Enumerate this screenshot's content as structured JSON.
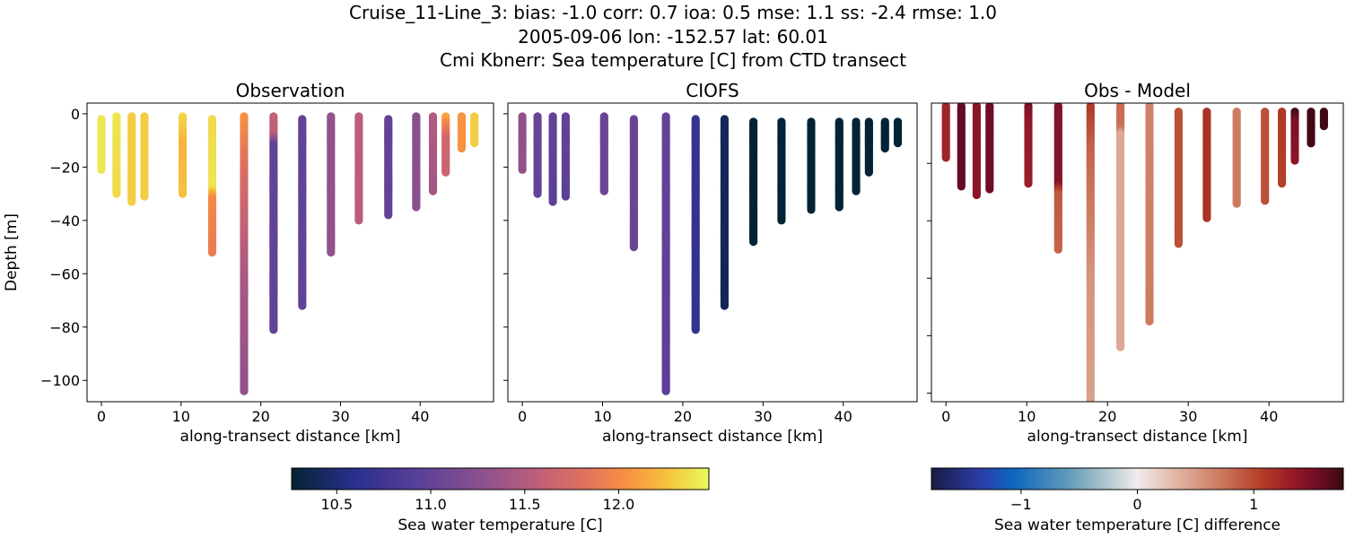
{
  "suptitle": {
    "line1": "Cruise_11-Line_3: bias: -1.0  corr: 0.7  ioa: 0.5  mse: 1.1  ss: -2.4  rmse: 1.0",
    "line2": "2005-09-06 lon: -152.57 lat: 60.01",
    "line3": "Cmi Kbnerr: Sea temperature [C] from CTD transect"
  },
  "chart_data": [
    {
      "type": "scatter",
      "title": "Observation",
      "xlabel": "along-transect distance [km]",
      "ylabel": "Depth [m]",
      "xlim": [
        -1.8,
        49.2
      ],
      "ylim": [
        -108,
        4
      ],
      "xticks": [
        0,
        10,
        20,
        30,
        40
      ],
      "yticks": [
        0,
        -20,
        -40,
        -60,
        -80,
        -100
      ],
      "ytick_labels": [
        "0",
        "−20",
        "−40",
        "−60",
        "−80",
        "−100"
      ],
      "colormap": "thermal",
      "clim": [
        10.26,
        12.48
      ],
      "casts": [
        {
          "x": 0.0,
          "profile": [
            [
              -2,
              12.4
            ],
            [
              -21,
              12.4
            ]
          ]
        },
        {
          "x": 1.9,
          "profile": [
            [
              -1,
              12.4
            ],
            [
              -30,
              12.35
            ]
          ]
        },
        {
          "x": 3.8,
          "profile": [
            [
              -1,
              12.3
            ],
            [
              -33,
              12.3
            ]
          ]
        },
        {
          "x": 5.4,
          "profile": [
            [
              -1,
              12.3
            ],
            [
              -31,
              12.3
            ]
          ]
        },
        {
          "x": 10.2,
          "profile": [
            [
              -1,
              12.35
            ],
            [
              -12,
              12.2
            ],
            [
              -30,
              12.25
            ]
          ]
        },
        {
          "x": 13.9,
          "profile": [
            [
              -2,
              12.35
            ],
            [
              -28,
              12.4
            ],
            [
              -32,
              12.0
            ],
            [
              -52,
              11.9
            ]
          ]
        },
        {
          "x": 17.9,
          "profile": [
            [
              -1,
              12.05
            ],
            [
              -20,
              11.8
            ],
            [
              -60,
              11.45
            ],
            [
              -104,
              11.3
            ]
          ]
        },
        {
          "x": 21.6,
          "profile": [
            [
              -1,
              11.6
            ],
            [
              -8,
              11.55
            ],
            [
              -12,
              11.0
            ],
            [
              -81,
              11.0
            ]
          ]
        },
        {
          "x": 25.2,
          "profile": [
            [
              -2,
              11.0
            ],
            [
              -72,
              11.0
            ]
          ]
        },
        {
          "x": 28.8,
          "profile": [
            [
              -1,
              11.3
            ],
            [
              -52,
              11.3
            ]
          ]
        },
        {
          "x": 32.3,
          "profile": [
            [
              -1,
              11.55
            ],
            [
              -40,
              11.55
            ]
          ]
        },
        {
          "x": 36.0,
          "profile": [
            [
              -2,
              11.0
            ],
            [
              -38,
              11.0
            ]
          ]
        },
        {
          "x": 39.5,
          "profile": [
            [
              -1,
              11.25
            ],
            [
              -35,
              11.25
            ]
          ]
        },
        {
          "x": 41.6,
          "profile": [
            [
              -1,
              11.5
            ],
            [
              -15,
              11.45
            ],
            [
              -29,
              11.4
            ]
          ]
        },
        {
          "x": 43.2,
          "profile": [
            [
              -1,
              12.15
            ],
            [
              -6,
              11.9
            ],
            [
              -10,
              11.7
            ],
            [
              -22,
              11.65
            ]
          ]
        },
        {
          "x": 45.2,
          "profile": [
            [
              -1,
              12.05
            ],
            [
              -13,
              12.05
            ]
          ]
        },
        {
          "x": 46.8,
          "profile": [
            [
              -1,
              12.3
            ],
            [
              -11,
              12.3
            ]
          ]
        }
      ]
    },
    {
      "type": "scatter",
      "title": "CIOFS",
      "xlabel": "along-transect distance [km]",
      "xlim": [
        -1.8,
        49.2
      ],
      "ylim": [
        -108,
        4
      ],
      "xticks": [
        0,
        10,
        20,
        30,
        40
      ],
      "yticks": [
        0,
        -20,
        -40,
        -60,
        -80,
        -100
      ],
      "colormap": "thermal",
      "clim": [
        10.26,
        12.48
      ],
      "casts": [
        {
          "x": 0.0,
          "profile": [
            [
              -1,
              11.3
            ],
            [
              -21,
              11.3
            ]
          ]
        },
        {
          "x": 1.9,
          "profile": [
            [
              -1,
              11.05
            ],
            [
              -30,
              11.0
            ]
          ]
        },
        {
          "x": 3.8,
          "profile": [
            [
              -1,
              11.0
            ],
            [
              -33,
              10.95
            ]
          ]
        },
        {
          "x": 5.4,
          "profile": [
            [
              -1,
              11.0
            ],
            [
              -31,
              10.95
            ]
          ]
        },
        {
          "x": 10.2,
          "profile": [
            [
              -1,
              11.05
            ],
            [
              -29,
              11.05
            ]
          ]
        },
        {
          "x": 13.9,
          "profile": [
            [
              -2,
              11.05
            ],
            [
              -50,
              11.05
            ]
          ]
        },
        {
          "x": 17.9,
          "profile": [
            [
              -1,
              11.0
            ],
            [
              -104,
              10.95
            ]
          ]
        },
        {
          "x": 21.6,
          "profile": [
            [
              -2,
              10.68
            ],
            [
              -81,
              10.65
            ]
          ]
        },
        {
          "x": 25.2,
          "profile": [
            [
              -2,
              10.4
            ],
            [
              -72,
              10.38
            ]
          ]
        },
        {
          "x": 28.8,
          "profile": [
            [
              -3,
              10.27
            ],
            [
              -48,
              10.27
            ]
          ]
        },
        {
          "x": 32.3,
          "profile": [
            [
              -3,
              10.27
            ],
            [
              -40,
              10.27
            ]
          ]
        },
        {
          "x": 36.0,
          "profile": [
            [
              -3,
              10.27
            ],
            [
              -36,
              10.27
            ]
          ]
        },
        {
          "x": 39.5,
          "profile": [
            [
              -3,
              10.27
            ],
            [
              -35,
              10.27
            ]
          ]
        },
        {
          "x": 41.6,
          "profile": [
            [
              -3,
              10.27
            ],
            [
              -29,
              10.27
            ]
          ]
        },
        {
          "x": 43.2,
          "profile": [
            [
              -3,
              10.27
            ],
            [
              -22,
              10.27
            ]
          ]
        },
        {
          "x": 45.2,
          "profile": [
            [
              -3,
              10.27
            ],
            [
              -13,
              10.27
            ]
          ]
        },
        {
          "x": 46.8,
          "profile": [
            [
              -3,
              10.27
            ],
            [
              -11,
              10.27
            ]
          ]
        }
      ]
    },
    {
      "type": "scatter",
      "title": "Obs - Model",
      "xlabel": "along-transect distance [km]",
      "xlim": [
        -1.8,
        49.2
      ],
      "ylim": [
        -103,
        1
      ],
      "xticks": [
        0,
        10,
        20,
        30,
        40
      ],
      "yticks": [
        -20,
        -40,
        -60,
        -80,
        -100
      ],
      "colormap": "balance",
      "clim": [
        -1.77,
        1.77
      ],
      "casts": [
        {
          "x": 0.0,
          "profile": [
            [
              0,
              1.25
            ],
            [
              -18,
              1.25
            ]
          ]
        },
        {
          "x": 1.9,
          "profile": [
            [
              0,
              1.6
            ],
            [
              -28,
              1.6
            ]
          ]
        },
        {
          "x": 3.8,
          "profile": [
            [
              0,
              1.4
            ],
            [
              -31,
              1.4
            ]
          ]
        },
        {
          "x": 5.4,
          "profile": [
            [
              0,
              1.55
            ],
            [
              -29,
              1.55
            ]
          ]
        },
        {
          "x": 10.2,
          "profile": [
            [
              0,
              1.5
            ],
            [
              -5,
              1.35
            ],
            [
              -27,
              1.3
            ]
          ]
        },
        {
          "x": 13.9,
          "profile": [
            [
              0,
              1.45
            ],
            [
              -27,
              1.45
            ],
            [
              -31,
              0.9
            ],
            [
              -50,
              0.85
            ]
          ]
        },
        {
          "x": 17.9,
          "profile": [
            [
              0,
              1.1
            ],
            [
              -15,
              0.85
            ],
            [
              -60,
              0.55
            ],
            [
              -110,
              0.45
            ]
          ]
        },
        {
          "x": 21.6,
          "profile": [
            [
              0,
              0.8
            ],
            [
              -8,
              0.75
            ],
            [
              -10,
              0.42
            ],
            [
              -84,
              0.42
            ]
          ]
        },
        {
          "x": 25.2,
          "profile": [
            [
              0,
              0.65
            ],
            [
              -75,
              0.7
            ]
          ]
        },
        {
          "x": 28.8,
          "profile": [
            [
              -2,
              0.95
            ],
            [
              -48,
              0.95
            ]
          ]
        },
        {
          "x": 32.3,
          "profile": [
            [
              -2,
              1.15
            ],
            [
              -39,
              1.15
            ]
          ]
        },
        {
          "x": 36.0,
          "profile": [
            [
              -2,
              0.7
            ],
            [
              -34,
              0.7
            ]
          ]
        },
        {
          "x": 39.5,
          "profile": [
            [
              -2,
              0.95
            ],
            [
              -33,
              0.95
            ]
          ]
        },
        {
          "x": 41.6,
          "profile": [
            [
              -2,
              1.1
            ],
            [
              -27,
              1.05
            ]
          ]
        },
        {
          "x": 43.2,
          "profile": [
            [
              -2,
              1.75
            ],
            [
              -6,
              1.5
            ],
            [
              -19,
              1.4
            ]
          ]
        },
        {
          "x": 45.2,
          "profile": [
            [
              -2,
              1.75
            ],
            [
              -13,
              1.75
            ]
          ]
        },
        {
          "x": 46.8,
          "profile": [
            [
              -2,
              1.75
            ],
            [
              -7,
              1.75
            ]
          ]
        }
      ]
    }
  ],
  "colorbars": [
    {
      "label": "Sea water temperature [C]",
      "ticks": [
        10.5,
        11.0,
        11.5,
        12.0
      ],
      "tick_labels": [
        "10.5",
        "11.0",
        "11.5",
        "12.0"
      ],
      "clim": [
        10.26,
        12.48
      ],
      "colormap": "thermal"
    },
    {
      "label": "Sea water temperature [C] difference",
      "ticks": [
        -1,
        0,
        1
      ],
      "tick_labels": [
        "−1",
        "0",
        "1"
      ],
      "clim": [
        -1.77,
        1.77
      ],
      "colormap": "balance"
    }
  ]
}
